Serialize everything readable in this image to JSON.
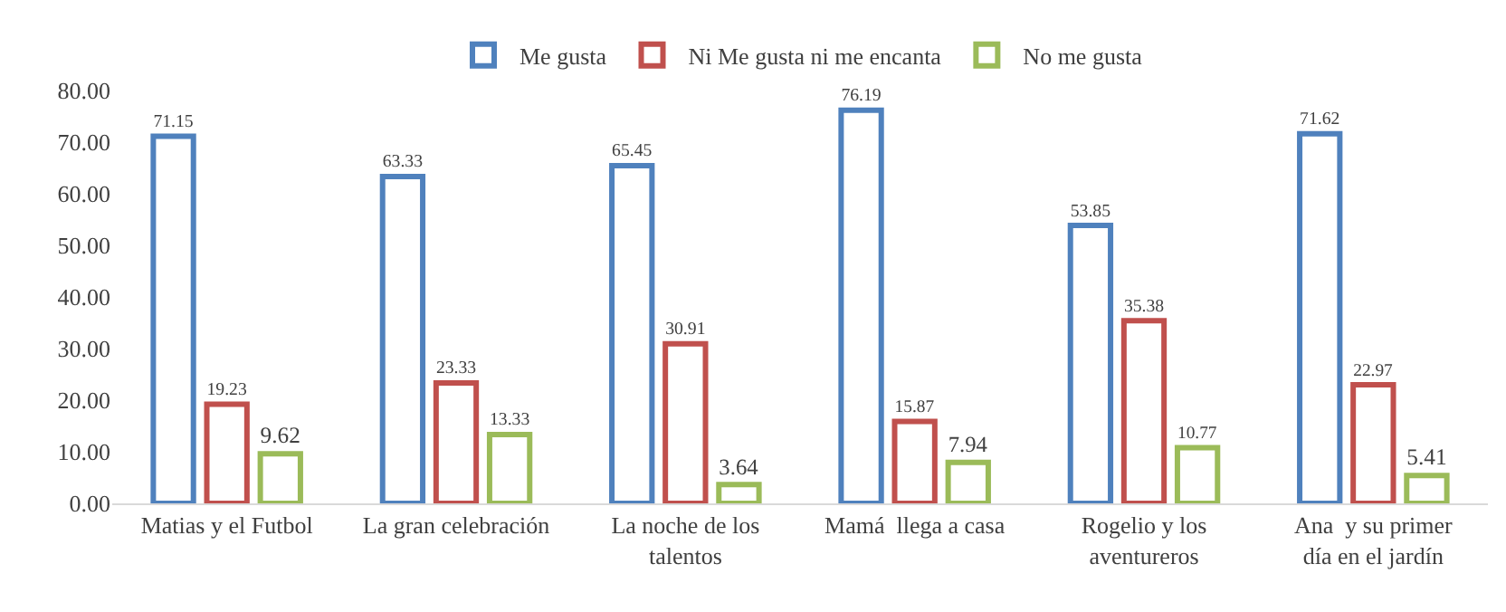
{
  "chart_data": {
    "type": "bar",
    "categories": [
      "Matias y el Futbol",
      "La gran celebración",
      "La noche de los talentos",
      "Mamá  llega a casa",
      "Rogelio y los aventureros",
      "Ana  y su primer día en el jardín"
    ],
    "series": [
      {
        "name": "Me gusta",
        "color": "#4f81bd",
        "values": [
          71.15,
          63.33,
          65.45,
          76.19,
          53.85,
          71.62
        ]
      },
      {
        "name": "Ni Me gusta ni me encanta",
        "color": "#c0504d",
        "values": [
          19.23,
          23.33,
          30.91,
          15.87,
          35.38,
          22.97
        ]
      },
      {
        "name": "No me gusta",
        "color": "#9bbb59",
        "values": [
          9.62,
          13.33,
          3.64,
          7.94,
          10.77,
          5.41
        ]
      }
    ],
    "ylim": [
      0,
      80
    ],
    "yticks": [
      {
        "value": 0,
        "label": "0.00"
      },
      {
        "value": 10,
        "label": "10.00"
      },
      {
        "value": 20,
        "label": "20.00"
      },
      {
        "value": 30,
        "label": "30.00"
      },
      {
        "value": 40,
        "label": "40.00"
      },
      {
        "value": 50,
        "label": "50.00"
      },
      {
        "value": 60,
        "label": "60.00"
      },
      {
        "value": 70,
        "label": "70.00"
      },
      {
        "value": 80,
        "label": "80.00"
      }
    ],
    "data_labels": true,
    "grid": false,
    "legend": "top"
  }
}
